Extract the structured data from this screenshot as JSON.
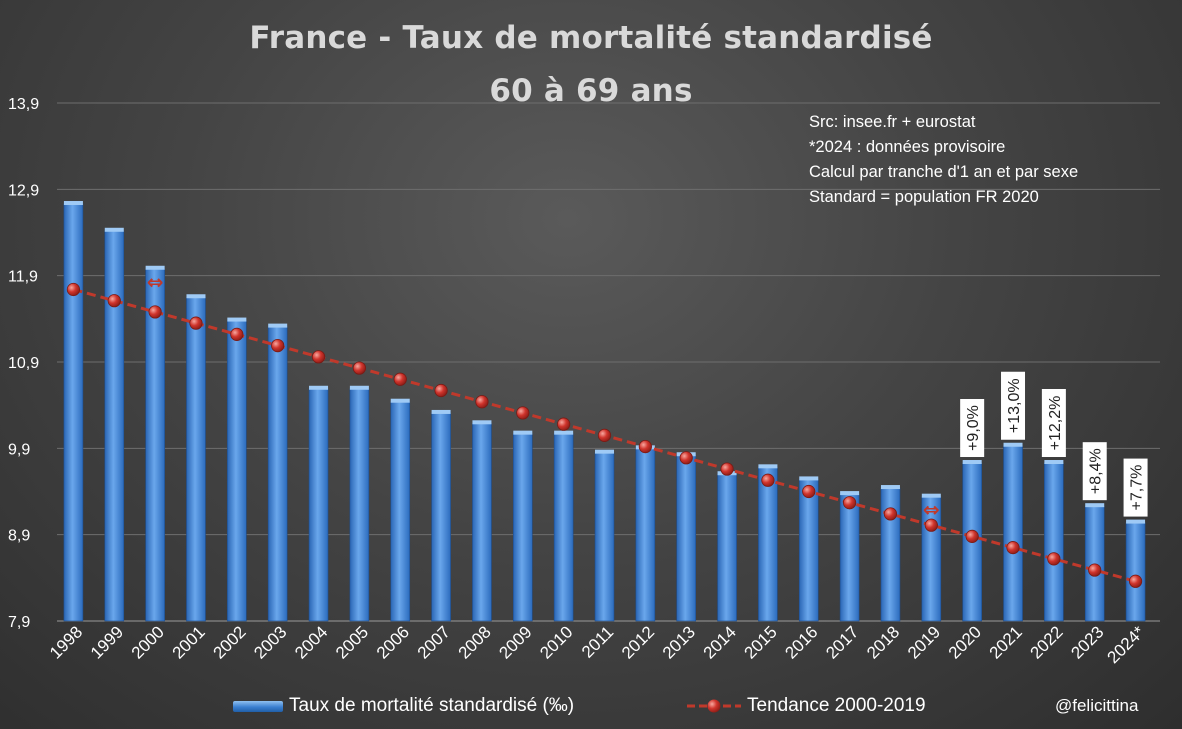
{
  "title": "France - Taux de mortalité standardisé",
  "subtitle": "60 à 69 ans",
  "source_lines": [
    "Src: insee.fr + eurostat",
    "*2024 : données provisoire",
    "Calcul par tranche d'1 an et par sexe",
    "Standard = population FR 2020"
  ],
  "credit": "@felicittina",
  "colors": {
    "bar": "#3b82d6",
    "trend": "#c0392b",
    "label_bg": "#ffffff"
  },
  "chart_data": {
    "type": "bar",
    "title": "France - Taux de mortalité standardisé",
    "subtitle": "60 à 69 ans",
    "categories": [
      "1998",
      "1999",
      "2000",
      "2001",
      "2002",
      "2003",
      "2004",
      "2005",
      "2006",
      "2007",
      "2008",
      "2009",
      "2010",
      "2011",
      "2012",
      "2013",
      "2014",
      "2015",
      "2016",
      "2017",
      "2018",
      "2019",
      "2020",
      "2021",
      "2022",
      "2023",
      "2024*"
    ],
    "ylim": [
      7.9,
      13.9
    ],
    "yticks": [
      "7,9",
      "8,9",
      "9,9",
      "10,9",
      "11,9",
      "12,9",
      "13,9"
    ],
    "grid": true,
    "series": [
      {
        "name": "Taux de mortalité standardisé (‰)",
        "type": "bar",
        "values": [
          12.73,
          12.42,
          11.98,
          11.65,
          11.38,
          11.31,
          10.59,
          10.59,
          10.44,
          10.31,
          10.19,
          10.07,
          10.07,
          9.85,
          9.9,
          9.82,
          9.6,
          9.68,
          9.54,
          9.37,
          9.44,
          9.34,
          9.73,
          9.93,
          9.73,
          9.23,
          9.04
        ]
      },
      {
        "name": "Tendance 2000-2019",
        "type": "line",
        "values": [
          11.74,
          11.61,
          11.48,
          11.35,
          11.22,
          11.09,
          10.96,
          10.83,
          10.7,
          10.57,
          10.44,
          10.31,
          10.18,
          10.05,
          9.92,
          9.79,
          9.66,
          9.53,
          9.4,
          9.27,
          9.14,
          9.01,
          8.88,
          8.75,
          8.62,
          8.49,
          8.36
        ]
      }
    ],
    "data_labels": [
      {
        "category": "2020",
        "text": "+9,0%"
      },
      {
        "category": "2021",
        "text": "+13,0%"
      },
      {
        "category": "2022",
        "text": "+12,2%"
      },
      {
        "category": "2023",
        "text": "+8,4%"
      },
      {
        "category": "2024*",
        "text": "+7,7%"
      }
    ],
    "markers": [
      {
        "category": "2000",
        "text": "⇔"
      },
      {
        "category": "2019",
        "text": "⇔"
      }
    ],
    "legend": "bottom"
  }
}
